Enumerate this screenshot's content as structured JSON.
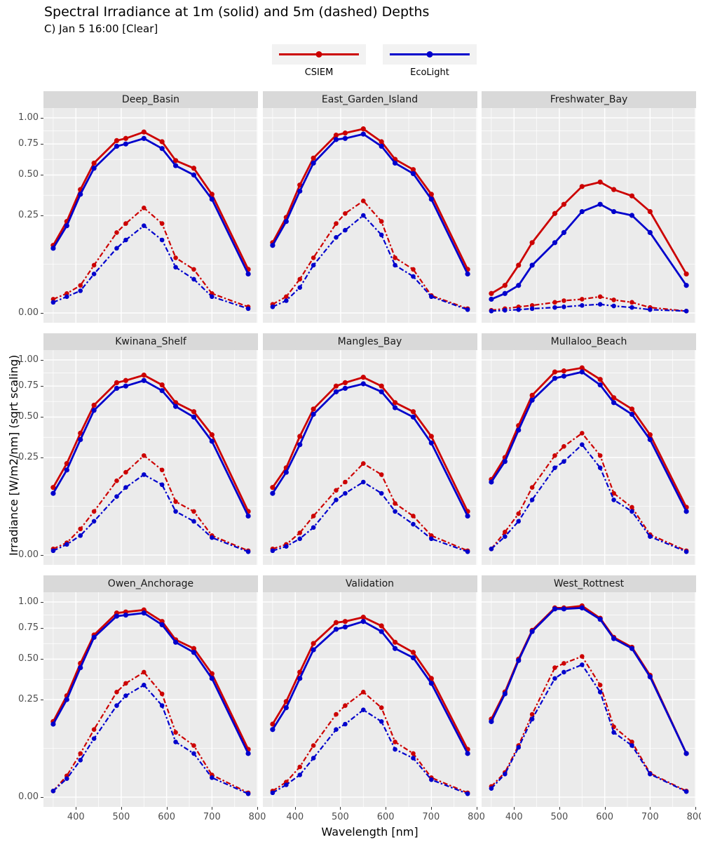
{
  "title": "Spectral Irradiance at 1m (solid) and 5m (dashed) Depths",
  "subtitle": "C) Jan 5 16:00 [Clear]",
  "legend": {
    "items": [
      {
        "label": "CSIEM",
        "color": "#CC0000"
      },
      {
        "label": "EcoLight",
        "color": "#0000CC"
      }
    ]
  },
  "chart_data": {
    "type": "line",
    "xlabel": "Wavelength [nm]",
    "ylabel": "Irradiance [W/m2/nm] (sqrt scaling)",
    "y_scale": "sqrt",
    "x_ticks": [
      400,
      500,
      600,
      700,
      800
    ],
    "y_ticks": [
      0.0,
      0.25,
      0.5,
      0.75,
      1.0
    ],
    "x_domain": [
      328.5,
      801.5
    ],
    "x": [
      350,
      380,
      410,
      440,
      490,
      510,
      550,
      590,
      620,
      660,
      700,
      780
    ],
    "line_styles": {
      "solid": "1m depth",
      "dashed": "5m depth"
    },
    "colors": {
      "CSIEM": "#CC0000",
      "EcoLight": "#0000CC"
    },
    "facets": [
      {
        "name": "Deep_Basin",
        "series": [
          {
            "model": "CSIEM",
            "depth": "1m",
            "style": "solid",
            "values": [
              0.12,
              0.22,
              0.4,
              0.59,
              0.78,
              0.8,
              0.86,
              0.77,
              0.61,
              0.55,
              0.37,
              0.05
            ]
          },
          {
            "model": "EcoLight",
            "depth": "1m",
            "style": "solid",
            "values": [
              0.11,
              0.2,
              0.37,
              0.55,
              0.73,
              0.75,
              0.8,
              0.71,
              0.57,
              0.5,
              0.34,
              0.04
            ]
          },
          {
            "model": "CSIEM",
            "depth": "5m",
            "style": "dashed",
            "values": [
              0.005,
              0.01,
              0.02,
              0.06,
              0.17,
              0.21,
              0.29,
              0.21,
              0.08,
              0.05,
              0.01,
              0.001
            ]
          },
          {
            "model": "EcoLight",
            "depth": "5m",
            "style": "dashed",
            "values": [
              0.003,
              0.007,
              0.013,
              0.04,
              0.11,
              0.14,
              0.2,
              0.14,
              0.055,
              0.03,
              0.007,
              0.0005
            ]
          }
        ]
      },
      {
        "name": "East_Garden_Island",
        "series": [
          {
            "model": "CSIEM",
            "depth": "1m",
            "style": "solid",
            "values": [
              0.13,
              0.24,
              0.43,
              0.63,
              0.83,
              0.85,
              0.89,
              0.77,
              0.62,
              0.54,
              0.37,
              0.05
            ]
          },
          {
            "model": "EcoLight",
            "depth": "1m",
            "style": "solid",
            "values": [
              0.12,
              0.22,
              0.39,
              0.59,
              0.79,
              0.8,
              0.84,
              0.73,
              0.59,
              0.51,
              0.34,
              0.04
            ]
          },
          {
            "model": "CSIEM",
            "depth": "5m",
            "style": "dashed",
            "values": [
              0.002,
              0.007,
              0.03,
              0.08,
              0.21,
              0.26,
              0.33,
              0.22,
              0.08,
              0.05,
              0.008,
              0.0005
            ]
          },
          {
            "model": "EcoLight",
            "depth": "5m",
            "style": "dashed",
            "values": [
              0.001,
              0.004,
              0.017,
              0.06,
              0.15,
              0.18,
              0.25,
              0.16,
              0.06,
              0.035,
              0.007,
              0.0003
            ]
          }
        ]
      },
      {
        "name": "Freshwater_Bay",
        "series": [
          {
            "model": "CSIEM",
            "depth": "1m",
            "style": "solid",
            "values": [
              0.01,
              0.02,
              0.06,
              0.13,
              0.26,
              0.31,
              0.42,
              0.45,
              0.4,
              0.36,
              0.27,
              0.04
            ]
          },
          {
            "model": "EcoLight",
            "depth": "1m",
            "style": "solid",
            "values": [
              0.005,
              0.01,
              0.02,
              0.06,
              0.13,
              0.17,
              0.27,
              0.31,
              0.27,
              0.25,
              0.17,
              0.02
            ]
          },
          {
            "model": "CSIEM",
            "depth": "5m",
            "style": "dashed",
            "values": [
              0.0002,
              0.0005,
              0.001,
              0.0015,
              0.003,
              0.004,
              0.005,
              0.007,
              0.0045,
              0.003,
              0.0008,
              0.0001
            ]
          },
          {
            "model": "EcoLight",
            "depth": "5m",
            "style": "dashed",
            "values": [
              0.0001,
              0.0002,
              0.0003,
              0.0005,
              0.0008,
              0.001,
              0.0015,
              0.002,
              0.0013,
              0.0008,
              0.0003,
              0.0001
            ]
          }
        ]
      },
      {
        "name": "Kwinana_Shelf",
        "series": [
          {
            "model": "CSIEM",
            "depth": "1m",
            "style": "solid",
            "values": [
              0.12,
              0.22,
              0.39,
              0.59,
              0.78,
              0.8,
              0.85,
              0.76,
              0.61,
              0.54,
              0.38,
              0.05
            ]
          },
          {
            "model": "EcoLight",
            "depth": "1m",
            "style": "solid",
            "values": [
              0.1,
              0.19,
              0.35,
              0.55,
              0.73,
              0.75,
              0.8,
              0.71,
              0.58,
              0.5,
              0.34,
              0.04
            ]
          },
          {
            "model": "CSIEM",
            "depth": "5m",
            "style": "dashed",
            "values": [
              0.001,
              0.004,
              0.018,
              0.05,
              0.145,
              0.18,
              0.26,
              0.19,
              0.075,
              0.05,
              0.01,
              0.0005
            ]
          },
          {
            "model": "EcoLight",
            "depth": "5m",
            "style": "dashed",
            "values": [
              0.0005,
              0.003,
              0.01,
              0.03,
              0.09,
              0.12,
              0.17,
              0.13,
              0.05,
              0.03,
              0.008,
              0.0003
            ]
          }
        ]
      },
      {
        "name": "Mangles_Bay",
        "series": [
          {
            "model": "CSIEM",
            "depth": "1m",
            "style": "solid",
            "values": [
              0.12,
              0.2,
              0.37,
              0.56,
              0.75,
              0.78,
              0.83,
              0.75,
              0.61,
              0.54,
              0.37,
              0.05
            ]
          },
          {
            "model": "EcoLight",
            "depth": "1m",
            "style": "solid",
            "values": [
              0.1,
              0.18,
              0.32,
              0.52,
              0.7,
              0.73,
              0.77,
              0.7,
              0.57,
              0.5,
              0.33,
              0.04
            ]
          },
          {
            "model": "CSIEM",
            "depth": "5m",
            "style": "dashed",
            "values": [
              0.001,
              0.003,
              0.013,
              0.04,
              0.11,
              0.14,
              0.22,
              0.17,
              0.07,
              0.04,
              0.01,
              0.0005
            ]
          },
          {
            "model": "EcoLight",
            "depth": "5m",
            "style": "dashed",
            "values": [
              0.0005,
              0.002,
              0.007,
              0.02,
              0.08,
              0.1,
              0.14,
              0.1,
              0.05,
              0.025,
              0.007,
              0.0003
            ]
          }
        ]
      },
      {
        "name": "Mullaloo_Beach",
        "series": [
          {
            "model": "CSIEM",
            "depth": "1m",
            "style": "solid",
            "values": [
              0.15,
              0.25,
              0.44,
              0.67,
              0.88,
              0.89,
              0.92,
              0.81,
              0.65,
              0.56,
              0.38,
              0.06
            ]
          },
          {
            "model": "EcoLight",
            "depth": "1m",
            "style": "solid",
            "values": [
              0.14,
              0.23,
              0.41,
              0.63,
              0.82,
              0.84,
              0.88,
              0.76,
              0.61,
              0.52,
              0.35,
              0.05
            ]
          },
          {
            "model": "CSIEM",
            "depth": "5m",
            "style": "dashed",
            "values": [
              0.001,
              0.014,
              0.045,
              0.12,
              0.26,
              0.31,
              0.39,
              0.26,
              0.1,
              0.06,
              0.011,
              0.0005
            ]
          },
          {
            "model": "EcoLight",
            "depth": "5m",
            "style": "dashed",
            "values": [
              0.001,
              0.009,
              0.03,
              0.08,
              0.2,
              0.23,
              0.32,
              0.2,
              0.08,
              0.05,
              0.009,
              0.0003
            ]
          }
        ]
      },
      {
        "name": "Owen_Anchorage",
        "series": [
          {
            "model": "CSIEM",
            "depth": "1m",
            "style": "solid",
            "values": [
              0.15,
              0.27,
              0.47,
              0.69,
              0.89,
              0.9,
              0.92,
              0.81,
              0.65,
              0.58,
              0.4,
              0.06
            ]
          },
          {
            "model": "EcoLight",
            "depth": "1m",
            "style": "solid",
            "values": [
              0.14,
              0.25,
              0.44,
              0.67,
              0.86,
              0.87,
              0.89,
              0.78,
              0.63,
              0.55,
              0.37,
              0.05
            ]
          },
          {
            "model": "CSIEM",
            "depth": "5m",
            "style": "dashed",
            "values": [
              0.001,
              0.012,
              0.05,
              0.12,
              0.29,
              0.34,
              0.41,
              0.28,
              0.11,
              0.07,
              0.013,
              0.0005
            ]
          },
          {
            "model": "EcoLight",
            "depth": "5m",
            "style": "dashed",
            "values": [
              0.001,
              0.009,
              0.036,
              0.09,
              0.22,
              0.27,
              0.33,
              0.22,
              0.08,
              0.05,
              0.01,
              0.0003
            ]
          }
        ]
      },
      {
        "name": "Validation",
        "series": [
          {
            "model": "CSIEM",
            "depth": "1m",
            "style": "solid",
            "values": [
              0.14,
              0.24,
              0.41,
              0.62,
              0.8,
              0.81,
              0.85,
              0.77,
              0.63,
              0.55,
              0.37,
              0.06
            ]
          },
          {
            "model": "EcoLight",
            "depth": "1m",
            "style": "solid",
            "values": [
              0.12,
              0.21,
              0.37,
              0.57,
              0.74,
              0.76,
              0.81,
              0.72,
              0.58,
              0.51,
              0.34,
              0.05
            ]
          },
          {
            "model": "CSIEM",
            "depth": "5m",
            "style": "dashed",
            "values": [
              0.001,
              0.006,
              0.024,
              0.07,
              0.18,
              0.22,
              0.29,
              0.21,
              0.08,
              0.05,
              0.01,
              0.0005
            ]
          },
          {
            "model": "EcoLight",
            "depth": "5m",
            "style": "dashed",
            "values": [
              0.0005,
              0.004,
              0.013,
              0.04,
              0.12,
              0.14,
              0.2,
              0.15,
              0.06,
              0.04,
              0.008,
              0.0003
            ]
          }
        ]
      },
      {
        "name": "West_Rottnest",
        "series": [
          {
            "model": "CSIEM",
            "depth": "1m",
            "style": "solid",
            "values": [
              0.16,
              0.29,
              0.5,
              0.73,
              0.94,
              0.94,
              0.96,
              0.84,
              0.67,
              0.59,
              0.39,
              0.05
            ]
          },
          {
            "model": "EcoLight",
            "depth": "1m",
            "style": "solid",
            "values": [
              0.15,
              0.28,
              0.49,
              0.72,
              0.93,
              0.93,
              0.94,
              0.83,
              0.66,
              0.58,
              0.38,
              0.05
            ]
          },
          {
            "model": "CSIEM",
            "depth": "5m",
            "style": "dashed",
            "values": [
              0.003,
              0.016,
              0.07,
              0.18,
              0.44,
              0.47,
              0.52,
              0.33,
              0.13,
              0.08,
              0.015,
              0.001
            ]
          },
          {
            "model": "EcoLight",
            "depth": "5m",
            "style": "dashed",
            "values": [
              0.002,
              0.014,
              0.065,
              0.16,
              0.37,
              0.41,
              0.46,
              0.29,
              0.11,
              0.07,
              0.014,
              0.0008
            ]
          }
        ]
      }
    ]
  }
}
